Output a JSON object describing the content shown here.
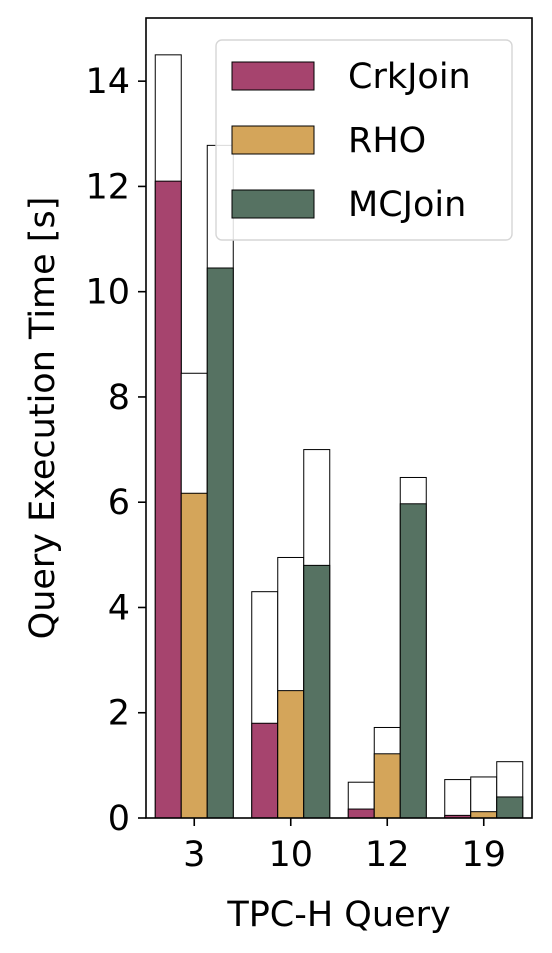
{
  "chart_data": {
    "type": "bar",
    "stacked_overlay": true,
    "xlabel": "TPC-H Query",
    "ylabel": "Query Execution Time [s]",
    "categories": [
      "3",
      "10",
      "12",
      "19"
    ],
    "ylim": [
      0,
      15.2
    ],
    "yticks": [
      0,
      2,
      4,
      6,
      8,
      10,
      12,
      14
    ],
    "grid": false,
    "legend_position": "top-right",
    "series": [
      {
        "name": "CrkJoin",
        "color": "#a6446e",
        "values": [
          12.1,
          1.8,
          0.17,
          0.05
        ],
        "totals": [
          14.5,
          4.3,
          0.68,
          0.73
        ]
      },
      {
        "name": "RHO",
        "color": "#d4a55a",
        "values": [
          6.17,
          2.42,
          1.22,
          0.12
        ],
        "totals": [
          8.45,
          4.95,
          1.72,
          0.78
        ]
      },
      {
        "name": "MCJoin",
        "color": "#567262",
        "values": [
          10.45,
          4.8,
          5.97,
          0.4
        ],
        "totals": [
          12.78,
          7.0,
          6.47,
          1.07
        ]
      }
    ]
  }
}
